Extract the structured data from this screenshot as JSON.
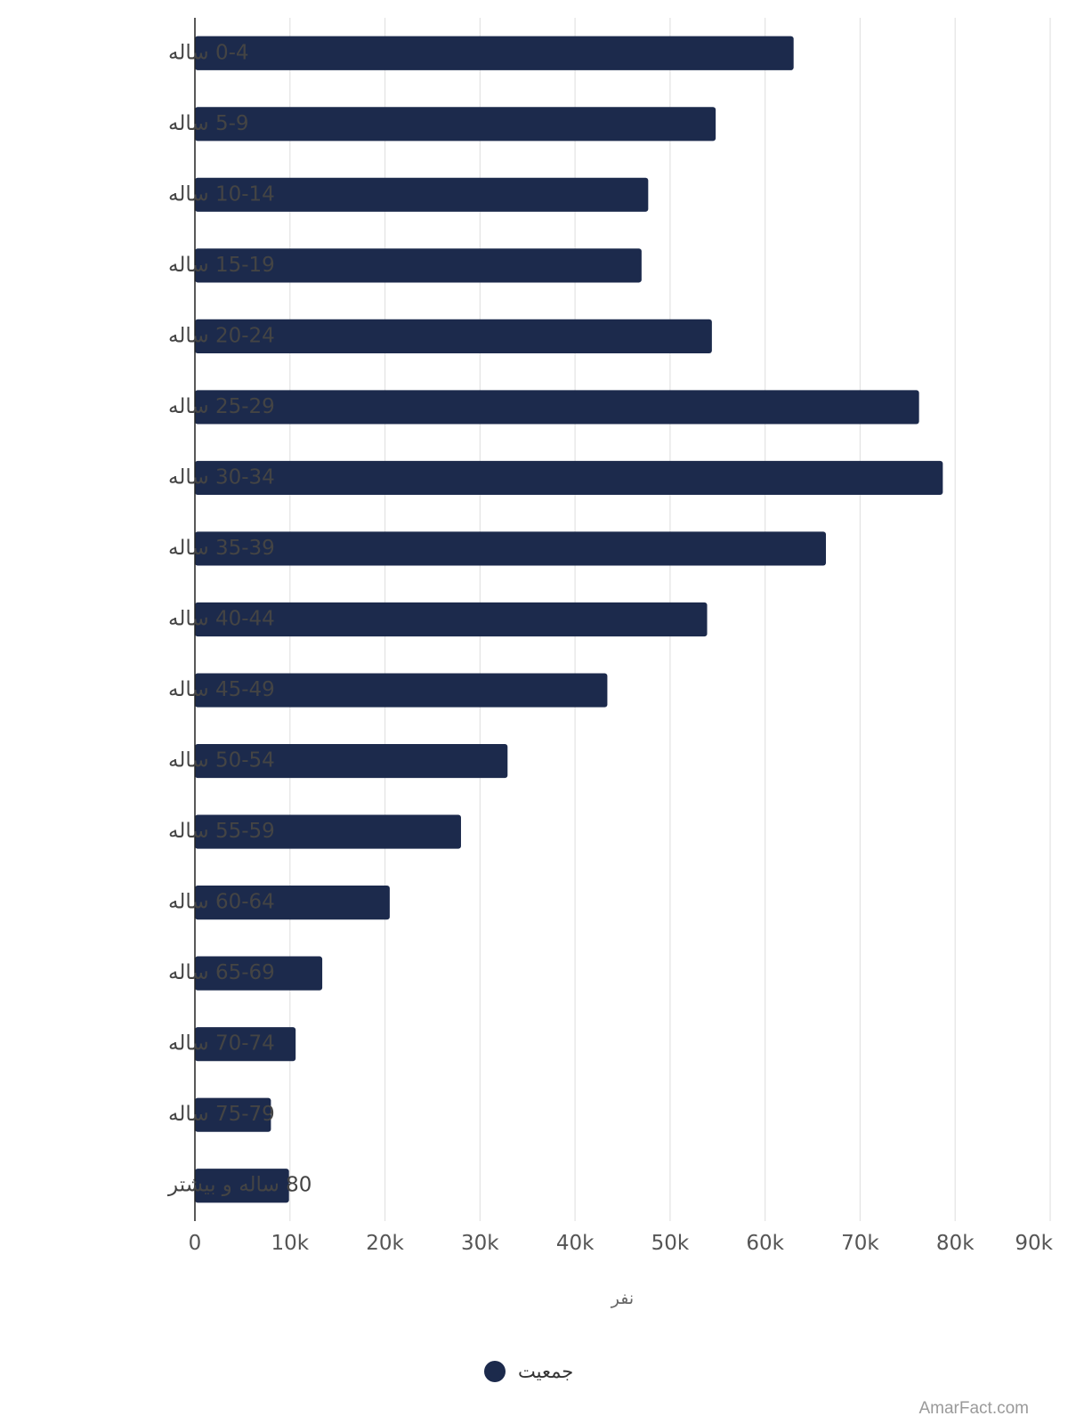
{
  "chart_data": {
    "type": "bar",
    "orientation": "horizontal",
    "categories": [
      "0-4 ساله",
      "5-9 ساله",
      "10-14 ساله",
      "15-19 ساله",
      "20-24 ساله",
      "25-29 ساله",
      "30-34 ساله",
      "35-39 ساله",
      "40-44 ساله",
      "45-49 ساله",
      "50-54 ساله",
      "55-59 ساله",
      "60-64 ساله",
      "65-69 ساله",
      "70-74 ساله",
      "75-79 ساله",
      "80 ساله و بیشتر"
    ],
    "series": [
      {
        "name": "جمعیت",
        "color": "#1c2a4c",
        "values": [
          63000,
          54800,
          47700,
          47000,
          54400,
          76200,
          78700,
          66400,
          53900,
          43400,
          32900,
          28000,
          20500,
          13400,
          10600,
          8000,
          9900
        ]
      }
    ],
    "xlabel": "نفر",
    "ylabel": "",
    "xlim": [
      0,
      90000
    ],
    "xticks": [
      0,
      10000,
      20000,
      30000,
      40000,
      50000,
      60000,
      70000,
      80000,
      90000
    ],
    "xtick_labels": [
      "0",
      "10k",
      "20k",
      "30k",
      "40k",
      "50k",
      "60k",
      "70k",
      "80k",
      "90k"
    ],
    "grid": true,
    "legend": "bottom-center"
  },
  "watermark": "AmarFact.com"
}
